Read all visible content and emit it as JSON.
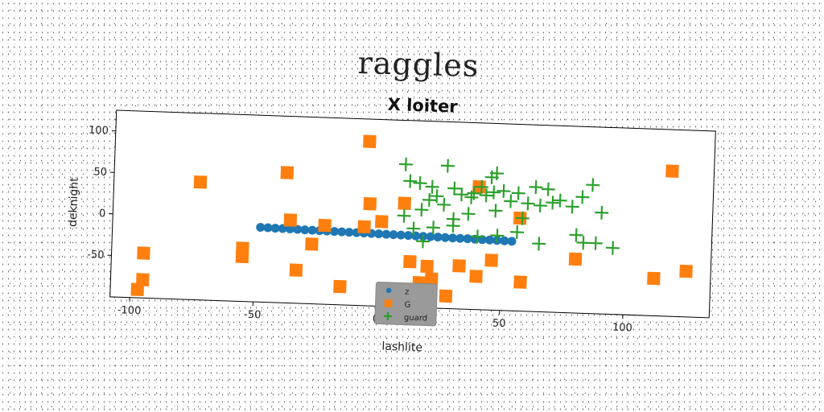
{
  "figure": {
    "suptitle": "raggles"
  },
  "chart_data": {
    "type": "scatter",
    "title": "X loiter",
    "xlabel": "lashlite",
    "ylabel": "deknight",
    "xlim": [
      -108,
      135
    ],
    "ylim": [
      -100,
      125
    ],
    "xticks": [
      -100,
      -50,
      0,
      50,
      100
    ],
    "yticks": [
      -50,
      0,
      50,
      100
    ],
    "grid": false,
    "legend_position": "lower-center",
    "series": [
      {
        "name": "z",
        "marker": "circle",
        "color": "#1f77b4",
        "x": [
          -48,
          -45,
          -42,
          -39,
          -36,
          -33,
          -30,
          -27,
          -24,
          -21,
          -18,
          -15,
          -12,
          -9,
          -6,
          -3,
          0,
          3,
          6,
          9,
          12,
          15,
          18,
          21,
          24,
          27,
          30,
          33,
          36,
          39,
          42,
          45,
          48,
          51,
          54
        ],
        "y": [
          -10,
          -10.2,
          -10.4,
          -10.5,
          -10.7,
          -10.9,
          -11.1,
          -11.3,
          -11.5,
          -11.6,
          -11.8,
          -12,
          -12.2,
          -12.3,
          -12.5,
          -12.7,
          -12.9,
          -13.1,
          -13.2,
          -13.4,
          -13.6,
          -13.8,
          -14,
          -14.1,
          -14.3,
          -14.5,
          -14.7,
          -14.9,
          -15,
          -15.2,
          -15.4,
          -15.6,
          -15.8,
          -16,
          -16.2
        ]
      },
      {
        "name": "G",
        "marker": "square",
        "color": "#ff7f0e",
        "x": [
          -5,
          -38,
          -73,
          -36,
          -4,
          10,
          -22,
          -27,
          -55,
          -55,
          -95,
          -95,
          -97,
          -33,
          -15,
          1,
          13,
          20,
          33,
          46,
          40,
          22,
          58,
          28,
          -6,
          17,
          80,
          112,
          125,
          118,
          40,
          57
        ],
        "y": [
          98,
          57,
          42,
          0,
          23,
          25,
          -5,
          -28,
          -36,
          -46,
          -46,
          -78,
          -90,
          -60,
          -78,
          2,
          -45,
          -50,
          -48,
          -40,
          -60,
          -65,
          -65,
          -85,
          -5,
          -70,
          -35,
          -55,
          -45,
          75,
          48,
          12
        ]
      },
      {
        "name": "guard",
        "marker": "plus",
        "color": "#2ca02c",
        "x": [
          10,
          27,
          47,
          45,
          12,
          16,
          21,
          30,
          38,
          41,
          46,
          50,
          56,
          63,
          68,
          73,
          82,
          86,
          20,
          23,
          26,
          33,
          37,
          43,
          53,
          60,
          65,
          70,
          78,
          90,
          95,
          10,
          17,
          30,
          36,
          47,
          58,
          14,
          22,
          30,
          56,
          65,
          83,
          18,
          40,
          48,
          80,
          88
        ],
        "y": [
          72,
          72,
          65,
          60,
          52,
          50,
          46,
          45,
          40,
          48,
          42,
          44,
          42,
          50,
          48,
          35,
          40,
          55,
          30,
          35,
          25,
          38,
          35,
          38,
          32,
          30,
          28,
          32,
          28,
          22,
          -20,
          10,
          18,
          8,
          15,
          20,
          12,
          -5,
          -3,
          0,
          -5,
          -18,
          -15,
          -20,
          -12,
          -10,
          -6,
          -15
        ]
      }
    ]
  }
}
